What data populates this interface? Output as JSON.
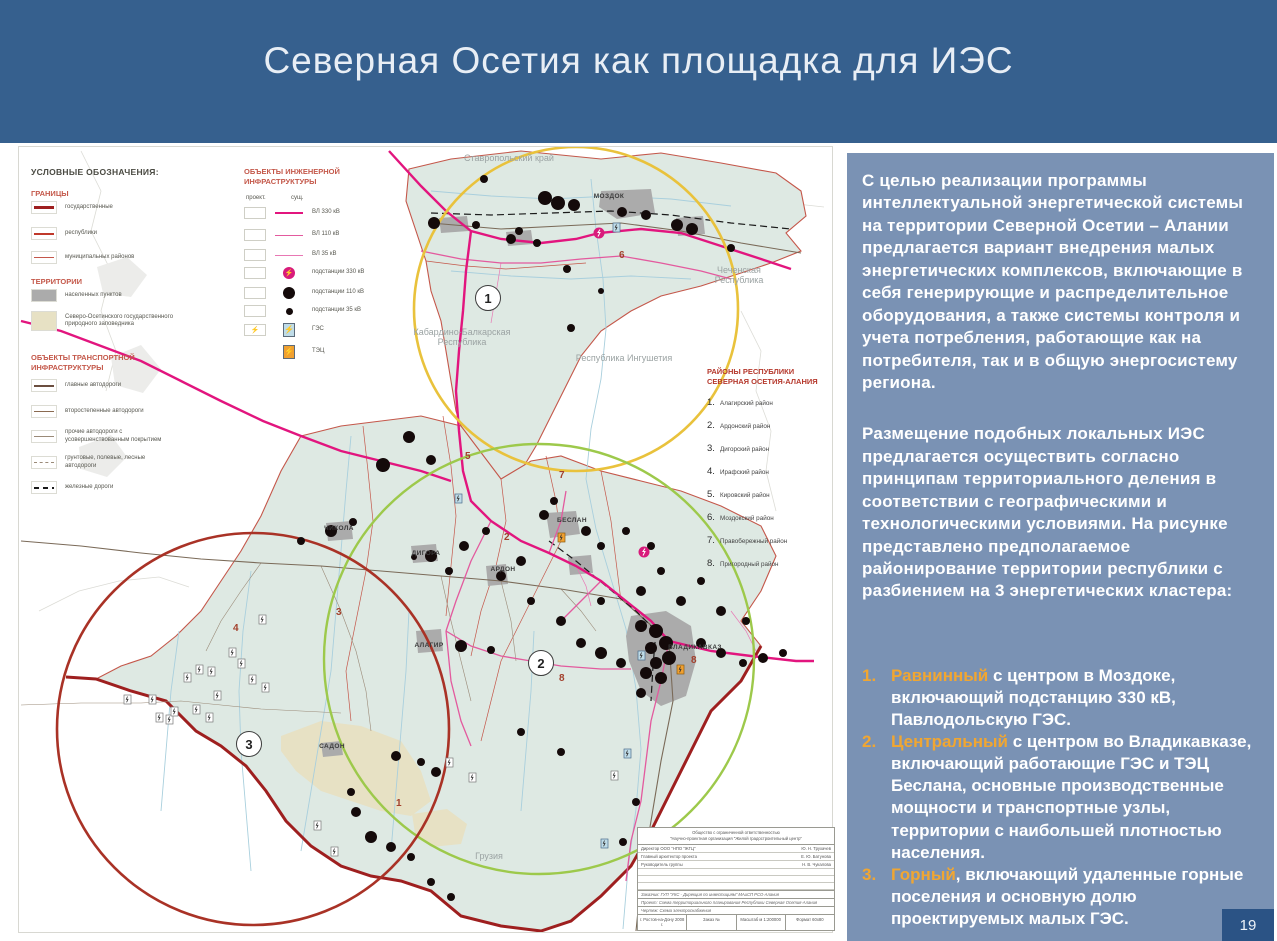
{
  "slide": {
    "title": "Северная Осетия как площадка для ИЭС",
    "page_number": "19"
  },
  "colors": {
    "header_bg": "#36608E",
    "panel_bg": "#7A92B4",
    "page_box_bg": "#2B5385",
    "accent_orange": "#F0A632",
    "line_330kv": "#E2157E",
    "cluster_yellow": "#E9C23C",
    "cluster_green": "#9DC94B",
    "cluster_red": "#A93226",
    "legend_heading_red": "#C4584A"
  },
  "legend": {
    "title": "УСЛОВНЫЕ ОБОЗНАЧЕНИЯ:",
    "borders": {
      "heading": "ГРАНИЦЫ",
      "items": [
        "государственные",
        "республики",
        "муниципальных районов"
      ]
    },
    "territories": {
      "heading": "ТЕРРИТОРИИ",
      "items": [
        "населенных пунктов",
        "Северо-Осетинского государственного природного заповедника"
      ]
    },
    "transport": {
      "heading": "ОБЪЕКТЫ ТРАНСПОРТНОЙ ИНФРАСТРУКТУРЫ",
      "items": [
        "главные автодороги",
        "второстепенные автодороги",
        "прочие автодороги с усовершенствованным покрытием",
        "грунтовые, полевые, лесные автодороги",
        "железные дороги"
      ]
    },
    "engineering": {
      "heading": "ОБЪЕКТЫ ИНЖЕНЕРНОЙ ИНФРАСТРУКТУРЫ",
      "col_project": "проект.",
      "col_existing": "сущ.",
      "items": [
        "ВЛ 330 кВ",
        "ВЛ 110 кВ",
        "ВЛ 35 кВ",
        "подстанции 330 кВ",
        "подстанции 110 кВ",
        "подстанции 35 кВ",
        "ГЭС",
        "ТЭЦ"
      ]
    }
  },
  "districts": {
    "heading_line1": "РАЙОНЫ РЕСПУБЛИКИ",
    "heading_line2": "СЕВЕРНАЯ ОСЕТИЯ-АЛАНИЯ",
    "items": [
      {
        "num": "1.",
        "name": "Алагирский район"
      },
      {
        "num": "2.",
        "name": "Ардонский район"
      },
      {
        "num": "3.",
        "name": "Дигорский район"
      },
      {
        "num": "4.",
        "name": "Ирафский район"
      },
      {
        "num": "5.",
        "name": "Кировский район"
      },
      {
        "num": "6.",
        "name": "Моздокский район"
      },
      {
        "num": "7.",
        "name": "Правобережный район"
      },
      {
        "num": "8.",
        "name": "Пригородный район"
      }
    ]
  },
  "map": {
    "regions": [
      "Ставропольский край",
      "Кабардино-Балкарская Республика",
      "Республика Ингушетия",
      "Чеченская Республика",
      "Грузия"
    ],
    "cities": [
      "МОЗДОК",
      "ВЛАДИКАВКАЗ",
      "БЕСЛАН",
      "АЛАГИР",
      "АРДОН",
      "ДИГОРА",
      "ЧИКОЛА",
      "САДОН"
    ],
    "cluster_markers": [
      "1",
      "2",
      "3"
    ],
    "district_numbers": [
      "1",
      "2",
      "3",
      "4",
      "5",
      "6",
      "7",
      "8"
    ]
  },
  "title_block": {
    "org1": "Общество с ограниченной ответственностью",
    "org2": "\"Научно-проектная организация \"Жилой градостроительный центр\"",
    "rows": [
      {
        "role": "Директор ООО \"НПО \"ЖГЦ\"",
        "name": "Ю. Н. Трухачев"
      },
      {
        "role": "Главный архитектор проекта",
        "name": "Е. Ю. Батунова"
      },
      {
        "role": "Руководитель группы",
        "name": "Н. В. Чукалова"
      }
    ],
    "customer": "Заказчик: ГУП \"УКС - Дирекция по инвестициям\" МАиСП РСО-Алания",
    "project": "Проект: Схема территориального планирования Республики Северная Осетия-Алания",
    "drawing": "Чертеж: Схема электроснабжения",
    "city": "г. Ростов-на-Дону 2008 г.",
    "order": "Заказ №",
    "scale": "Масштаб м 1:200000",
    "format": "Формат 60х80"
  },
  "panel": {
    "paragraph1": "С целью реализации программы интеллектуальной энергетической системы на территории Северной Осетии – Алании предлагается вариант внедрения малых энергетических комплексов, включающие в себя генерирующие и распределительное оборудования, а также системы контроля и учета потребления, работающие как на потребителя, так и в общую энергосистему региона.",
    "paragraph2": "Размещение подобных локальных ИЭС предлагается осуществить согласно принципам территориального деления в соответствии с географическими и технологическими условиями. На рисунке представлено предполагаемое районирование территории республики с разбиением на 3 энергетических кластера:",
    "clusters": [
      {
        "num": "1.",
        "term": "Равнинный",
        "text": " с центром в Моздоке, включающий подстанцию 330 кВ, Павлодольскую ГЭС."
      },
      {
        "num": "2.",
        "term": "Центральный",
        "text": " с центром во Владикавказе, включающий работающие ГЭС и ТЭЦ Беслана, основные производственные мощности и транспортные узлы, территории с наибольшей плотностью населения."
      },
      {
        "num": "3.",
        "term": "Горный",
        "text": ", включающий удаленные горные поселения и основную долю проектируемых малых ГЭС."
      }
    ]
  }
}
